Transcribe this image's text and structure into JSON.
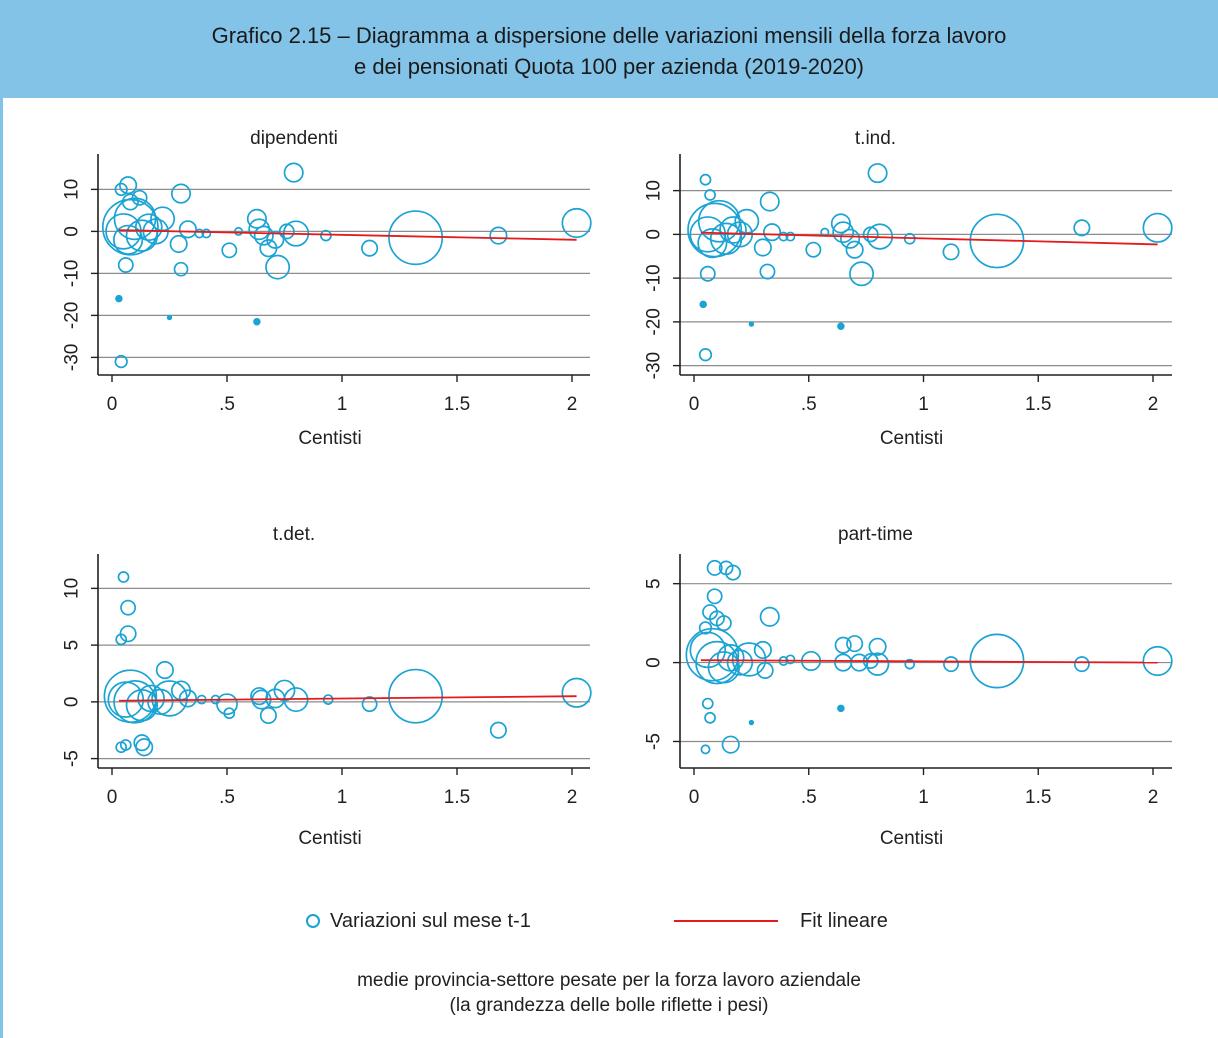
{
  "title": {
    "line1": "Grafico 2.15 – Diagramma a dispersione delle variazioni mensili della forza lavoro",
    "line2": "e dei pensionati Quota 100 per azienda (2019-2020)"
  },
  "colors": {
    "bubble": "#1aa3d4",
    "fit": "#e41a1c",
    "grid": "#8c8c8c",
    "header": "#83c3e8"
  },
  "legend": {
    "bubbles": "Variazioni sul mese t-1",
    "fit": "Fit lineare"
  },
  "note": {
    "line1": "medie provincia-settore pesate per la forza lavoro aziendale",
    "line2": "(la grandezza delle bolle riflette i pesi)"
  },
  "chart_data": [
    {
      "type": "scatter",
      "title": "dipendenti",
      "xlabel": "Centisti",
      "xticks": [
        0,
        0.5,
        1,
        1.5,
        2
      ],
      "xtick_labels": [
        "0",
        ".5",
        "1",
        "1.5",
        "2"
      ],
      "yticks": [
        -30,
        -20,
        -10,
        0,
        10
      ],
      "ytick_labels": [
        "-30",
        "-20",
        "-10",
        "0",
        "10"
      ],
      "grid": true,
      "fit": {
        "x": [
          0.03,
          2.02
        ],
        "y": [
          0.3,
          -2.0
        ]
      },
      "points": [
        [
          0.08,
          1,
          4.5
        ],
        [
          0.1,
          3,
          2.5
        ],
        [
          0.05,
          0,
          1.8
        ],
        [
          0.13,
          -1,
          1.4
        ],
        [
          0.07,
          -2,
          1.2
        ],
        [
          0.16,
          1,
          1.0
        ],
        [
          0.19,
          0,
          0.9
        ],
        [
          0.22,
          3,
          0.8
        ],
        [
          0.04,
          10,
          0.2
        ],
        [
          0.07,
          11,
          0.4
        ],
        [
          0.08,
          7,
          0.35
        ],
        [
          0.12,
          8,
          0.3
        ],
        [
          0.06,
          -8,
          0.3
        ],
        [
          0.03,
          -16,
          0.05
        ],
        [
          0.25,
          -20.5,
          0.02
        ],
        [
          0.04,
          -31,
          0.2
        ],
        [
          0.3,
          9,
          0.5
        ],
        [
          0.29,
          -3,
          0.4
        ],
        [
          0.3,
          -9,
          0.25
        ],
        [
          0.33,
          0.5,
          0.4
        ],
        [
          0.38,
          -0.5,
          0.1
        ],
        [
          0.41,
          -0.5,
          0.1
        ],
        [
          0.55,
          0,
          0.08
        ],
        [
          0.51,
          -4.5,
          0.3
        ],
        [
          0.63,
          3,
          0.5
        ],
        [
          0.64,
          0.5,
          0.6
        ],
        [
          0.66,
          -1,
          0.5
        ],
        [
          0.68,
          -4,
          0.4
        ],
        [
          0.71,
          -2,
          0.4
        ],
        [
          0.72,
          -8.5,
          0.8
        ],
        [
          0.76,
          0,
          0.3
        ],
        [
          0.79,
          14,
          0.5
        ],
        [
          0.8,
          -0.5,
          0.9
        ],
        [
          0.63,
          -21.5,
          0.05
        ],
        [
          0.93,
          -1,
          0.15
        ],
        [
          1.12,
          -4,
          0.35
        ],
        [
          1.32,
          -1.5,
          4.2
        ],
        [
          1.68,
          -1,
          0.4
        ],
        [
          2.02,
          2,
          1.2
        ]
      ]
    },
    {
      "type": "scatter",
      "title": "t.ind.",
      "xlabel": "Centisti",
      "xticks": [
        0,
        0.5,
        1,
        1.5,
        2
      ],
      "xtick_labels": [
        "0",
        ".5",
        "1",
        "1.5",
        "2"
      ],
      "yticks": [
        -30,
        -20,
        -10,
        0,
        10
      ],
      "ytick_labels": [
        "-30",
        "-20",
        "-10",
        "0",
        "10"
      ],
      "grid": true,
      "fit": {
        "x": [
          0.03,
          2.02
        ],
        "y": [
          0.4,
          -2.3
        ]
      },
      "points": [
        [
          0.09,
          1,
          4.2
        ],
        [
          0.11,
          3,
          2.5
        ],
        [
          0.06,
          0,
          1.8
        ],
        [
          0.14,
          -1,
          1.4
        ],
        [
          0.08,
          -2,
          1.2
        ],
        [
          0.17,
          1,
          1.0
        ],
        [
          0.2,
          0,
          0.9
        ],
        [
          0.23,
          3,
          0.8
        ],
        [
          0.05,
          12.5,
          0.15
        ],
        [
          0.07,
          9,
          0.15
        ],
        [
          0.06,
          -9,
          0.3
        ],
        [
          0.04,
          -16,
          0.05
        ],
        [
          0.25,
          -20.5,
          0.02
        ],
        [
          0.05,
          -27.5,
          0.2
        ],
        [
          0.33,
          7.5,
          0.5
        ],
        [
          0.3,
          -3,
          0.4
        ],
        [
          0.32,
          -8.5,
          0.3
        ],
        [
          0.34,
          0.5,
          0.4
        ],
        [
          0.39,
          -0.5,
          0.1
        ],
        [
          0.42,
          -0.5,
          0.1
        ],
        [
          0.57,
          0.5,
          0.08
        ],
        [
          0.52,
          -3.5,
          0.3
        ],
        [
          0.64,
          2.5,
          0.5
        ],
        [
          0.65,
          0.5,
          0.6
        ],
        [
          0.68,
          -1,
          0.5
        ],
        [
          0.7,
          -3.5,
          0.4
        ],
        [
          0.73,
          -9,
          0.8
        ],
        [
          0.77,
          0,
          0.3
        ],
        [
          0.8,
          14,
          0.5
        ],
        [
          0.81,
          -0.5,
          0.9
        ],
        [
          0.64,
          -21,
          0.05
        ],
        [
          0.94,
          -1,
          0.15
        ],
        [
          1.12,
          -4,
          0.35
        ],
        [
          1.32,
          -1.5,
          4.2
        ],
        [
          1.69,
          1.5,
          0.35
        ],
        [
          2.02,
          1.5,
          1.2
        ]
      ]
    },
    {
      "type": "scatter",
      "title": "t.det.",
      "xlabel": "Centisti",
      "xticks": [
        0,
        0.5,
        1,
        1.5,
        2
      ],
      "xtick_labels": [
        "0",
        ".5",
        "1",
        "1.5",
        "2"
      ],
      "yticks": [
        -5,
        0,
        5,
        10
      ],
      "ytick_labels": [
        "-5",
        "0",
        "5",
        "10"
      ],
      "grid": true,
      "fit": {
        "x": [
          0.03,
          2.02
        ],
        "y": [
          0.1,
          0.5
        ]
      },
      "points": [
        [
          0.08,
          0.5,
          4.0
        ],
        [
          0.1,
          0,
          2.6
        ],
        [
          0.06,
          0.2,
          1.8
        ],
        [
          0.13,
          -0.3,
          1.4
        ],
        [
          0.17,
          0.3,
          1.0
        ],
        [
          0.21,
          0,
          0.9
        ],
        [
          0.25,
          0.3,
          1.8
        ],
        [
          0.05,
          11,
          0.15
        ],
        [
          0.07,
          8.3,
          0.3
        ],
        [
          0.07,
          6,
          0.35
        ],
        [
          0.04,
          5.5,
          0.15
        ],
        [
          0.04,
          -4,
          0.15
        ],
        [
          0.06,
          -3.8,
          0.15
        ],
        [
          0.14,
          -4,
          0.4
        ],
        [
          0.13,
          -3.6,
          0.35
        ],
        [
          0.23,
          2.8,
          0.4
        ],
        [
          0.3,
          1,
          0.5
        ],
        [
          0.33,
          0.3,
          0.4
        ],
        [
          0.39,
          0.2,
          0.1
        ],
        [
          0.45,
          0.2,
          0.1
        ],
        [
          0.5,
          -0.2,
          0.6
        ],
        [
          0.51,
          -1,
          0.15
        ],
        [
          0.64,
          0.5,
          0.4
        ],
        [
          0.65,
          0.2,
          0.5
        ],
        [
          0.68,
          -1.2,
          0.35
        ],
        [
          0.71,
          0.3,
          0.5
        ],
        [
          0.75,
          1,
          0.6
        ],
        [
          0.8,
          0.2,
          0.8
        ],
        [
          0.94,
          0.2,
          0.12
        ],
        [
          1.12,
          -0.2,
          0.3
        ],
        [
          1.32,
          0.5,
          4.2
        ],
        [
          1.68,
          -2.5,
          0.35
        ],
        [
          2.02,
          0.8,
          1.2
        ]
      ]
    },
    {
      "type": "scatter",
      "title": "part-time",
      "xlabel": "Centisti",
      "xticks": [
        0,
        0.5,
        1,
        1.5,
        2
      ],
      "xtick_labels": [
        "0",
        ".5",
        "1",
        "1.5",
        "2"
      ],
      "yticks": [
        -5,
        0,
        5
      ],
      "ytick_labels": [
        "-5",
        "0",
        "5"
      ],
      "grid": true,
      "fit": {
        "x": [
          0.03,
          2.02
        ],
        "y": [
          0.15,
          0.0
        ]
      },
      "points": [
        [
          0.08,
          0.5,
          4.0
        ],
        [
          0.1,
          0,
          2.6
        ],
        [
          0.06,
          0.8,
          1.8
        ],
        [
          0.13,
          -0.3,
          1.4
        ],
        [
          0.16,
          0.3,
          1.0
        ],
        [
          0.2,
          0,
          0.9
        ],
        [
          0.24,
          0.2,
          1.6
        ],
        [
          0.09,
          6,
          0.3
        ],
        [
          0.14,
          6,
          0.25
        ],
        [
          0.17,
          5.7,
          0.3
        ],
        [
          0.09,
          4.2,
          0.3
        ],
        [
          0.07,
          3.2,
          0.3
        ],
        [
          0.1,
          2.8,
          0.3
        ],
        [
          0.13,
          2.5,
          0.3
        ],
        [
          0.05,
          2.2,
          0.2
        ],
        [
          0.05,
          -5.5,
          0.1
        ],
        [
          0.07,
          -3.5,
          0.15
        ],
        [
          0.06,
          -2.6,
          0.15
        ],
        [
          0.16,
          -5.2,
          0.4
        ],
        [
          0.25,
          -3.8,
          0.02
        ],
        [
          0.33,
          2.9,
          0.5
        ],
        [
          0.31,
          -0.5,
          0.35
        ],
        [
          0.3,
          0.8,
          0.4
        ],
        [
          0.39,
          0.1,
          0.1
        ],
        [
          0.42,
          0.2,
          0.1
        ],
        [
          0.51,
          0.1,
          0.5
        ],
        [
          0.65,
          1.1,
          0.35
        ],
        [
          0.65,
          0,
          0.4
        ],
        [
          0.64,
          -2.9,
          0.05
        ],
        [
          0.7,
          1.2,
          0.35
        ],
        [
          0.72,
          0,
          0.4
        ],
        [
          0.77,
          0.1,
          0.3
        ],
        [
          0.8,
          1,
          0.4
        ],
        [
          0.8,
          -0.1,
          0.7
        ],
        [
          0.94,
          -0.1,
          0.12
        ],
        [
          1.12,
          -0.1,
          0.3
        ],
        [
          1.32,
          0.1,
          4.2
        ],
        [
          1.69,
          -0.1,
          0.3
        ],
        [
          2.02,
          0.1,
          1.2
        ]
      ]
    }
  ]
}
